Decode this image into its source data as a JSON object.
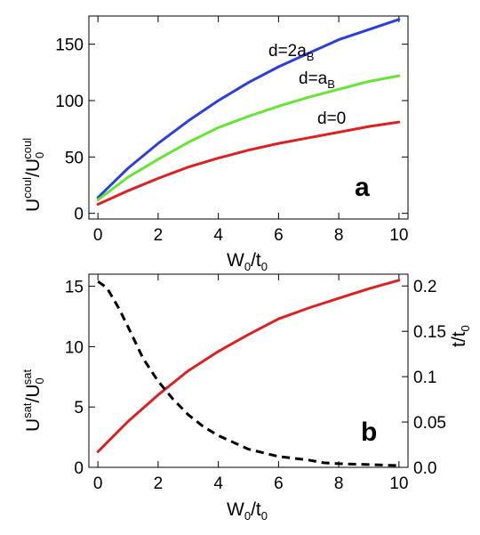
{
  "chart_data": [
    {
      "type": "line",
      "panel_label": "a",
      "xlabel": {
        "base": "W",
        "sub1": "0",
        "mid": "/t",
        "sub2": "0"
      },
      "ylabel": {
        "base1": "U",
        "sup1": "coul",
        "mid": "/U",
        "sub2": "0",
        "sup2": "coul"
      },
      "xlim": [
        -0.3,
        10.3
      ],
      "ylim": [
        -5,
        175
      ],
      "xticks": [
        0,
        2,
        4,
        6,
        8,
        10
      ],
      "yticks": [
        0,
        50,
        100,
        150
      ],
      "grid": false,
      "series": [
        {
          "name": "d=2a_B",
          "label_base": "d=2a",
          "label_sub": "B",
          "color": "#2a3fe0",
          "x": [
            0,
            1,
            2,
            3,
            4,
            5,
            6,
            7,
            8,
            9,
            10
          ],
          "y": [
            14,
            40,
            62,
            82,
            100,
            116,
            130,
            142,
            154,
            163,
            172
          ]
        },
        {
          "name": "d=a_B",
          "label_base": "d=a",
          "label_sub": "B",
          "color": "#66e633",
          "x": [
            0,
            1,
            2,
            3,
            4,
            5,
            6,
            7,
            8,
            9,
            10
          ],
          "y": [
            12,
            32,
            48,
            63,
            76,
            86,
            95,
            103,
            110,
            117,
            122
          ]
        },
        {
          "name": "d=0",
          "label_base": "d=0",
          "label_sub": "",
          "color": "#e02020",
          "x": [
            0,
            1,
            2,
            3,
            4,
            5,
            6,
            7,
            8,
            9,
            10
          ],
          "y": [
            8,
            20,
            31,
            41,
            49,
            56,
            62,
            67,
            72,
            77,
            81
          ]
        }
      ]
    },
    {
      "type": "line",
      "panel_label": "b",
      "xlabel": {
        "base": "W",
        "sub1": "0",
        "mid": "/t",
        "sub2": "0"
      },
      "ylabel": {
        "base1": "U",
        "sup1": "sat",
        "mid": "/U",
        "sub2": "0",
        "sup2": "sat"
      },
      "y2label": {
        "base": "t/t",
        "sub": "0"
      },
      "xlim": [
        -0.3,
        10.3
      ],
      "ylim": [
        0,
        16
      ],
      "y2lim": [
        0,
        0.213
      ],
      "xticks": [
        0,
        2,
        4,
        6,
        8,
        10
      ],
      "yticks": [
        0,
        5,
        10,
        15
      ],
      "y2ticks": [
        0.0,
        0.05,
        0.1,
        0.15,
        0.2
      ],
      "y2ticklabels": [
        "0.0",
        "0.05",
        "0.1",
        "0.15",
        "0.2"
      ],
      "grid": false,
      "series": [
        {
          "name": "",
          "axis": "left",
          "color": "#e02020",
          "dash": false,
          "x": [
            0,
            1,
            2,
            3,
            4,
            5,
            6,
            7,
            8,
            9,
            10
          ],
          "y": [
            1.3,
            3.8,
            6.0,
            8.0,
            9.6,
            11.0,
            12.3,
            13.2,
            14.0,
            14.8,
            15.5
          ]
        },
        {
          "name": "",
          "axis": "right",
          "color": "#000000",
          "dash": true,
          "x": [
            0,
            0.3,
            0.7,
            1,
            1.5,
            2,
            2.5,
            3,
            3.5,
            4,
            5,
            6,
            7,
            7.5,
            8,
            9,
            10
          ],
          "y": [
            0.205,
            0.198,
            0.175,
            0.155,
            0.12,
            0.095,
            0.075,
            0.058,
            0.045,
            0.035,
            0.02,
            0.012,
            0.008,
            0.005,
            0.004,
            0.003,
            0.002
          ]
        }
      ]
    }
  ]
}
